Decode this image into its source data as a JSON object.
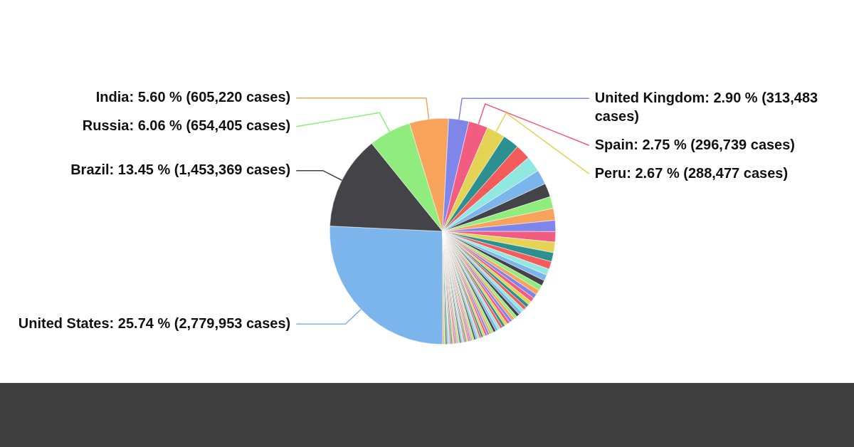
{
  "chart_data": {
    "type": "pie",
    "categories": [
      "United States",
      "Brazil",
      "Russia",
      "India",
      "United Kingdom",
      "Spain",
      "Peru",
      null,
      null,
      null,
      null,
      null,
      null,
      null,
      null,
      null,
      null,
      null,
      null,
      null,
      null,
      null,
      null,
      null,
      null,
      null,
      null,
      null,
      null,
      null,
      null,
      null,
      null,
      null,
      null,
      null,
      null,
      null,
      null,
      null,
      null,
      null,
      null,
      null,
      null,
      null,
      null,
      null,
      null,
      null,
      null,
      null,
      null,
      null,
      null,
      null,
      null,
      null,
      null,
      null,
      null,
      null,
      null,
      null,
      null,
      null,
      null,
      null,
      null,
      null,
      null,
      null,
      null,
      null
    ],
    "values": [
      25.74,
      13.45,
      6.06,
      5.6,
      2.9,
      2.75,
      2.67,
      2.34,
      2.2,
      2.27,
      2.1,
      1.96,
      1.7,
      1.7,
      1.6,
      1.5,
      1.5,
      1.3,
      1.1,
      0.9,
      0.85,
      0.8,
      0.75,
      0.7,
      0.65,
      0.6,
      0.55,
      0.5,
      0.48,
      0.47,
      0.46,
      0.45,
      0.44,
      0.43,
      0.42,
      0.41,
      0.4,
      0.39,
      0.38,
      0.37,
      0.36,
      0.35,
      0.34,
      0.33,
      0.32,
      0.31,
      0.3,
      0.29,
      0.28,
      0.27,
      0.26,
      0.25,
      0.24,
      0.23,
      0.22,
      0.21,
      0.2,
      0.2,
      0.2,
      0.2,
      0.2,
      0.2,
      0.2,
      0.2,
      0.2,
      0.2,
      0.2,
      0.2,
      0.2,
      0.2,
      0.2,
      0.2,
      0.2,
      0.2
    ],
    "value_labels": [
      "25.74 % (2,779,953 cases)",
      "13.45 % (1,453,369 cases)",
      "6.06 % (654,405 cases)",
      "5.60 % (605,220 cases)",
      "2.90 % (313,483 cases)",
      "2.75 % (296,739 cases)",
      "2.67 % (288,477 cases)",
      null,
      null,
      null,
      null,
      null,
      null,
      null,
      null,
      null,
      null,
      null,
      null,
      null,
      null,
      null,
      null,
      null,
      null,
      null,
      null,
      null,
      null,
      null,
      null,
      null,
      null,
      null,
      null,
      null,
      null,
      null,
      null,
      null,
      null,
      null,
      null,
      null,
      null,
      null,
      null,
      null,
      null,
      null,
      null,
      null,
      null,
      null,
      null,
      null,
      null,
      null,
      null,
      null,
      null,
      null,
      null,
      null,
      null,
      null,
      null,
      null,
      null,
      null,
      null,
      null,
      null,
      null
    ],
    "colors": [
      "#7cb5ec",
      "#434348",
      "#90ed7d",
      "#f7a35c",
      "#8085e9",
      "#f15c80",
      "#e4d354",
      "#2b908f",
      "#f45b5b",
      "#91e8e1",
      "#7cb5ec",
      "#434348",
      "#90ed7d",
      "#f7a35c",
      "#8085e9",
      "#f15c80",
      "#e4d354",
      "#2b908f",
      "#f45b5b",
      "#91e8e1",
      "#7cb5ec",
      "#434348",
      "#90ed7d",
      "#f7a35c",
      "#8085e9",
      "#f15c80",
      "#e4d354",
      "#2b908f",
      "#f45b5b",
      "#91e8e1",
      "#7cb5ec",
      "#434348",
      "#90ed7d",
      "#f7a35c",
      "#8085e9",
      "#f15c80",
      "#e4d354",
      "#2b908f",
      "#f45b5b",
      "#91e8e1",
      "#7cb5ec",
      "#434348",
      "#90ed7d",
      "#f7a35c",
      "#8085e9",
      "#f15c80",
      "#e4d354",
      "#2b908f",
      "#f45b5b",
      "#91e8e1",
      "#7cb5ec",
      "#434348",
      "#90ed7d",
      "#f7a35c",
      "#8085e9",
      "#f15c80",
      "#e4d354",
      "#2b908f",
      "#f45b5b",
      "#91e8e1",
      "#7cb5ec",
      "#434348",
      "#90ed7d",
      "#f7a35c",
      "#8085e9",
      "#f15c80",
      "#e4d354",
      "#2b908f",
      "#f45b5b",
      "#91e8e1",
      "#7cb5ec",
      "#434348",
      "#90ed7d",
      "#f7a35c"
    ],
    "legend": false
  }
}
